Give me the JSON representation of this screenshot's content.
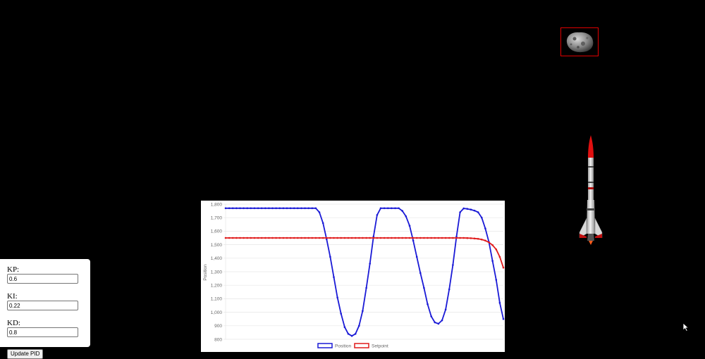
{
  "pid_panel": {
    "kp_label": "KP:",
    "kp_value": "0.6",
    "ki_label": "KI:",
    "ki_value": "0.22",
    "kd_label": "KD:",
    "kd_value": "0.8",
    "update_label": "Update PID"
  },
  "colors": {
    "position": "#1a1ad6",
    "setpoint": "#e01a1a",
    "asteroid_box": "#e00000"
  },
  "icons": {
    "asteroid": "asteroid-icon",
    "rocket": "rocket-icon",
    "cursor": "mouse-pointer-icon"
  },
  "chart_data": {
    "type": "line",
    "ylabel": "Position",
    "xlabel": "",
    "ylim": [
      800,
      1800
    ],
    "yticks": [
      "800",
      "900",
      "1,000",
      "1,100",
      "1,200",
      "1,300",
      "1,400",
      "1,500",
      "1,600",
      "1,700",
      "1,800"
    ],
    "legend_position": "bottom",
    "grid": true,
    "series": [
      {
        "name": "Position",
        "color": "#1a1ad6",
        "values": [
          1770,
          1770,
          1770,
          1770,
          1770,
          1770,
          1770,
          1770,
          1770,
          1770,
          1770,
          1770,
          1770,
          1770,
          1770,
          1770,
          1770,
          1770,
          1770,
          1770,
          1770,
          1770,
          1770,
          1770,
          1770,
          1770,
          1740,
          1660,
          1540,
          1410,
          1260,
          1110,
          990,
          890,
          840,
          825,
          840,
          900,
          1010,
          1180,
          1360,
          1560,
          1720,
          1770,
          1770,
          1770,
          1770,
          1770,
          1770,
          1750,
          1710,
          1640,
          1530,
          1410,
          1290,
          1180,
          1060,
          970,
          925,
          915,
          940,
          1020,
          1170,
          1350,
          1560,
          1740,
          1768,
          1765,
          1760,
          1752,
          1740,
          1700,
          1620,
          1520,
          1380,
          1240,
          1070,
          950
        ]
      },
      {
        "name": "Setpoint",
        "color": "#e01a1a",
        "values": [
          1550,
          1550,
          1550,
          1550,
          1550,
          1550,
          1550,
          1550,
          1550,
          1550,
          1550,
          1550,
          1550,
          1550,
          1550,
          1550,
          1550,
          1550,
          1550,
          1550,
          1550,
          1550,
          1550,
          1550,
          1550,
          1550,
          1550,
          1550,
          1550,
          1550,
          1550,
          1550,
          1550,
          1550,
          1550,
          1550,
          1550,
          1550,
          1550,
          1550,
          1550,
          1550,
          1550,
          1550,
          1550,
          1550,
          1550,
          1550,
          1550,
          1550,
          1550,
          1550,
          1550,
          1550,
          1550,
          1550,
          1550,
          1550,
          1550,
          1550,
          1550,
          1550,
          1550,
          1550,
          1550,
          1550,
          1550,
          1549,
          1548,
          1546,
          1543,
          1538,
          1530,
          1517,
          1497,
          1465,
          1410,
          1330
        ]
      }
    ]
  }
}
